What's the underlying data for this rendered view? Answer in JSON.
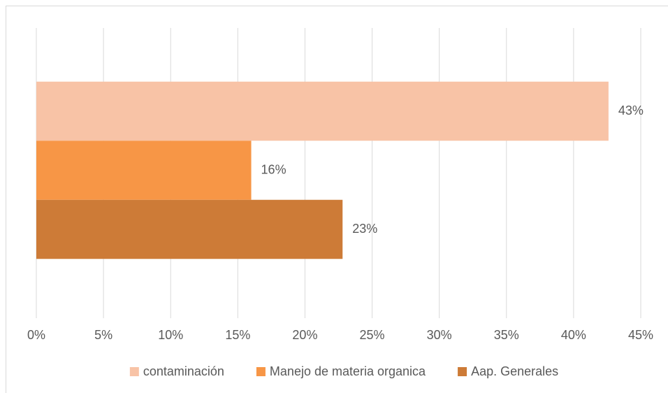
{
  "chart_data": {
    "type": "bar",
    "orientation": "horizontal",
    "categories": [
      null
    ],
    "series": [
      {
        "name": "contaminación",
        "color": "#f8c3a6",
        "values": [
          42.6
        ],
        "value_labels": [
          "43%"
        ]
      },
      {
        "name": "Manejo de materia organica",
        "color": "#f79646",
        "values": [
          16
        ],
        "value_labels": [
          "16%"
        ]
      },
      {
        "name": "Aap. Generales",
        "color": "#cd7b37",
        "values": [
          22.8
        ],
        "value_labels": [
          "23%"
        ]
      }
    ],
    "xlim": [
      0,
      45
    ],
    "xticks": [
      {
        "value": 0,
        "label": "0%"
      },
      {
        "value": 5,
        "label": "5%"
      },
      {
        "value": 10,
        "label": "10%"
      },
      {
        "value": 15,
        "label": "15%"
      },
      {
        "value": 20,
        "label": "20%"
      },
      {
        "value": 25,
        "label": "25%"
      },
      {
        "value": 30,
        "label": "30%"
      },
      {
        "value": 35,
        "label": "35%"
      },
      {
        "value": 40,
        "label": "40%"
      },
      {
        "value": 45,
        "label": "45%"
      }
    ],
    "grid": true,
    "legend": "bottom"
  }
}
